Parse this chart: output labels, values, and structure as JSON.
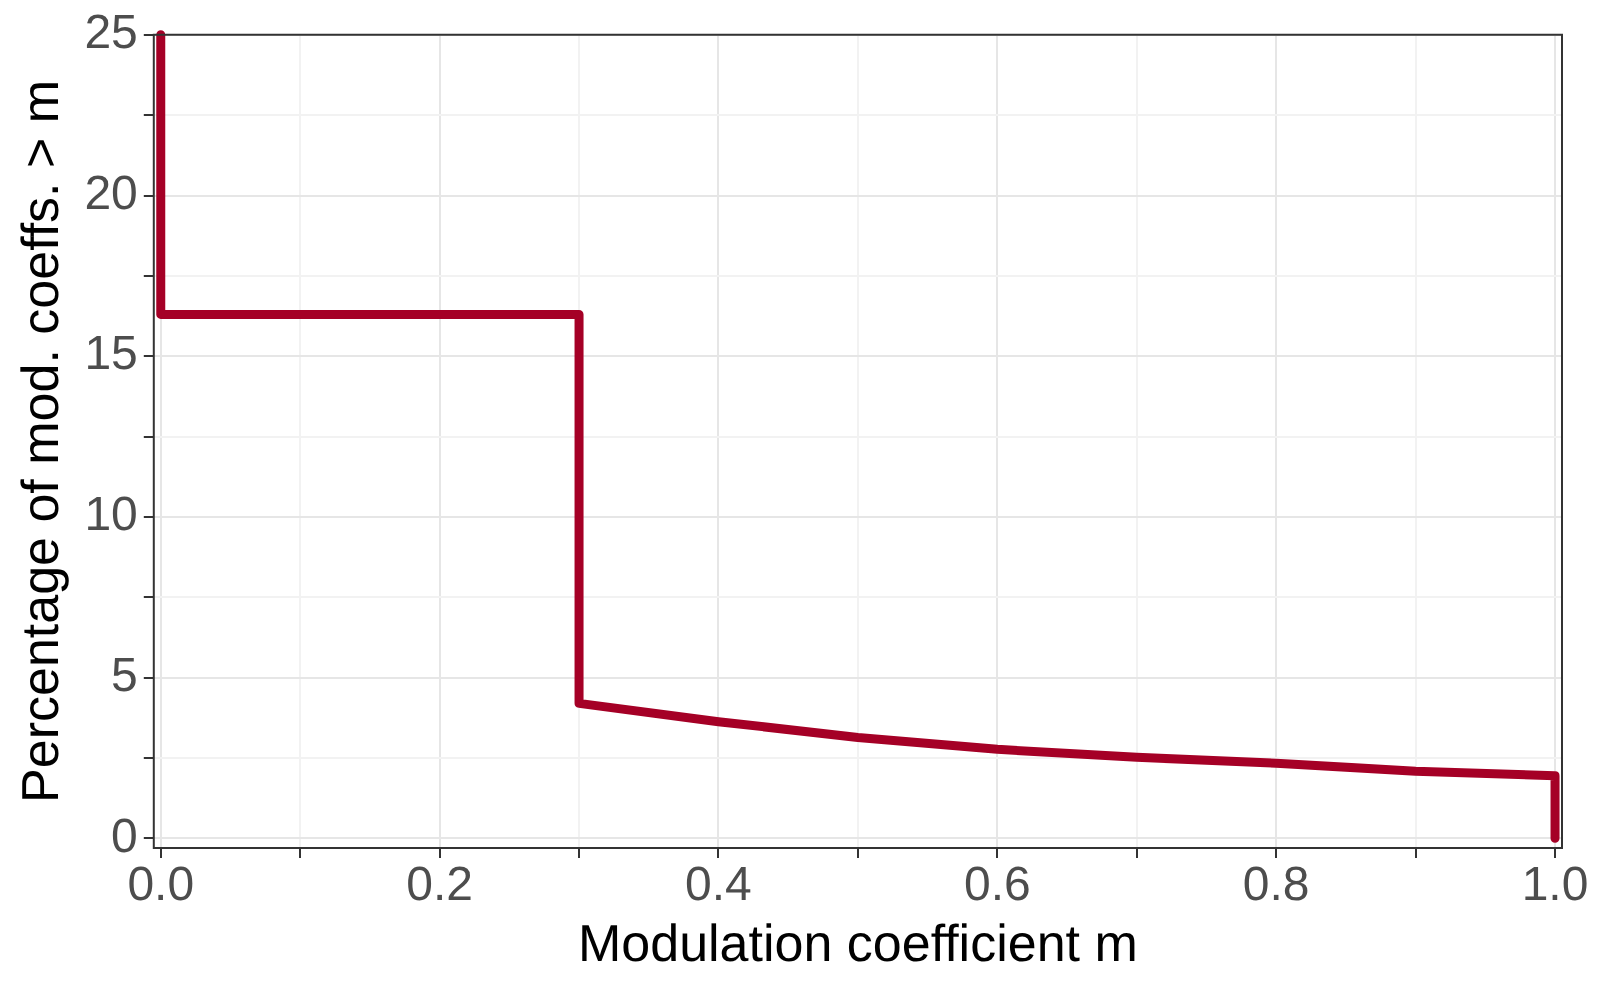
{
  "chart_data": {
    "type": "line",
    "xlabel": "Modulation coefficient m",
    "ylabel": "Percentage of mod. coeffs. > m",
    "x": [
      0,
      0,
      0.3,
      0.3,
      0.4,
      0.5,
      0.6,
      0.7,
      0.8,
      0.9,
      1,
      1
    ],
    "series": [
      {
        "color": "#a50026",
        "values": [
          25,
          16.3,
          16.3,
          4.2,
          3.63,
          3.14,
          2.77,
          2.52,
          2.34,
          2.09,
          1.95,
          0
        ]
      }
    ],
    "xlim": [
      -0.005,
      1.005
    ],
    "ylim": [
      -0.3,
      25
    ],
    "xticks": [
      {
        "value": 0,
        "label": "0.0"
      },
      {
        "value": 0.1,
        "label": null
      },
      0.2,
      {
        "value": 0.3,
        "label": null
      },
      0.4,
      {
        "value": 0.5,
        "label": null
      },
      0.6,
      {
        "value": 0.7,
        "label": null
      },
      0.8,
      {
        "value": 0.9,
        "label": null
      },
      {
        "value": 1,
        "label": "1.0"
      }
    ],
    "yticks": [
      0,
      {
        "value": 2.5,
        "label": null
      },
      5,
      {
        "value": 7.5,
        "label": null
      },
      10,
      {
        "value": 12.5,
        "label": null
      },
      15,
      {
        "value": 17.5,
        "label": null
      },
      20,
      {
        "value": 22.5,
        "label": null
      },
      25
    ],
    "grid": true,
    "legend": false,
    "marker": "none",
    "line_style": "solid"
  }
}
